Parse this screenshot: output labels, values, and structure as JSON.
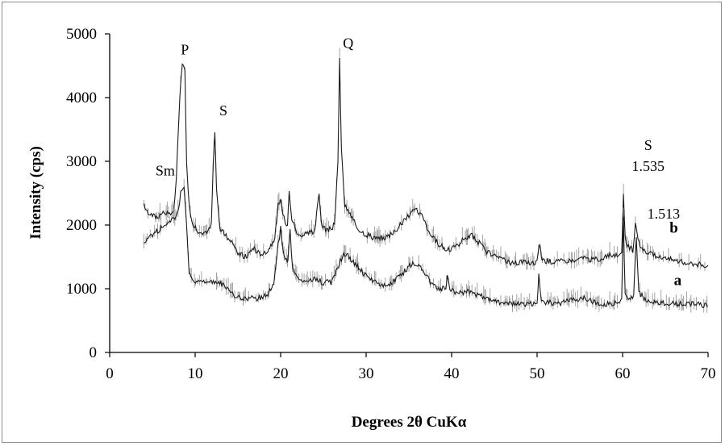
{
  "chart_data": {
    "type": "line",
    "xlabel": "Degrees 2θ CuKα",
    "ylabel": "Intensity (cps)",
    "xlim": [
      0,
      70
    ],
    "ylim": [
      0,
      5000
    ],
    "xticks": [
      "0",
      "10",
      "20",
      "30",
      "40",
      "50",
      "60",
      "70"
    ],
    "yticks": [
      "0",
      "1000",
      "2000",
      "3000",
      "4000",
      "5000"
    ],
    "grid": false,
    "legend": "none",
    "colors": {
      "line": "#1a1a1a",
      "noise": "#9a9a9a",
      "axis": "#000000"
    },
    "series": [
      {
        "name": "b",
        "label_at": [
          65.5,
          1880
        ],
        "points": [
          [
            4.0,
            2300
          ],
          [
            4.5,
            2200
          ],
          [
            5.0,
            2150
          ],
          [
            5.5,
            2120
          ],
          [
            6.0,
            2180
          ],
          [
            6.5,
            2200
          ],
          [
            7.0,
            2150
          ],
          [
            7.5,
            2250
          ],
          [
            7.8,
            2700
          ],
          [
            8.0,
            3400
          ],
          [
            8.3,
            4200
          ],
          [
            8.5,
            4500
          ],
          [
            8.8,
            4400
          ],
          [
            9.0,
            3000
          ],
          [
            9.3,
            2300
          ],
          [
            9.8,
            1980
          ],
          [
            10.5,
            1900
          ],
          [
            11.0,
            1850
          ],
          [
            11.5,
            1880
          ],
          [
            11.9,
            2000
          ],
          [
            12.1,
            2900
          ],
          [
            12.3,
            3500
          ],
          [
            12.5,
            2600
          ],
          [
            12.9,
            1950
          ],
          [
            13.5,
            1850
          ],
          [
            14.5,
            1700
          ],
          [
            15.0,
            1550
          ],
          [
            16.0,
            1500
          ],
          [
            16.8,
            1650
          ],
          [
            17.5,
            1550
          ],
          [
            18.5,
            1600
          ],
          [
            19.3,
            1800
          ],
          [
            19.7,
            2300
          ],
          [
            20.0,
            2400
          ],
          [
            20.4,
            2100
          ],
          [
            20.8,
            2000
          ],
          [
            21.0,
            2550
          ],
          [
            21.3,
            2100
          ],
          [
            22.0,
            1850
          ],
          [
            23.0,
            1850
          ],
          [
            24.0,
            1900
          ],
          [
            24.3,
            2300
          ],
          [
            24.5,
            2500
          ],
          [
            24.8,
            2000
          ],
          [
            25.5,
            1900
          ],
          [
            26.3,
            2000
          ],
          [
            26.7,
            3000
          ],
          [
            26.9,
            4600
          ],
          [
            27.1,
            3200
          ],
          [
            27.5,
            2300
          ],
          [
            28.0,
            2200
          ],
          [
            29.0,
            1950
          ],
          [
            30.0,
            1850
          ],
          [
            31.0,
            1800
          ],
          [
            32.0,
            1800
          ],
          [
            33.0,
            1850
          ],
          [
            34.0,
            2000
          ],
          [
            35.0,
            2150
          ],
          [
            35.8,
            2250
          ],
          [
            36.5,
            2150
          ],
          [
            37.5,
            1850
          ],
          [
            38.5,
            1700
          ],
          [
            39.5,
            1600
          ],
          [
            40.5,
            1650
          ],
          [
            41.5,
            1800
          ],
          [
            42.3,
            1850
          ],
          [
            43.0,
            1750
          ],
          [
            44.0,
            1600
          ],
          [
            45.0,
            1500
          ],
          [
            46.0,
            1450
          ],
          [
            47.0,
            1400
          ],
          [
            48.0,
            1420
          ],
          [
            49.0,
            1400
          ],
          [
            50.0,
            1420
          ],
          [
            50.3,
            1700
          ],
          [
            50.6,
            1450
          ],
          [
            51.5,
            1430
          ],
          [
            52.5,
            1420
          ],
          [
            53.5,
            1450
          ],
          [
            54.5,
            1450
          ],
          [
            55.5,
            1480
          ],
          [
            56.5,
            1450
          ],
          [
            57.5,
            1480
          ],
          [
            58.5,
            1520
          ],
          [
            59.5,
            1550
          ],
          [
            59.9,
            1600
          ],
          [
            60.1,
            2450
          ],
          [
            60.3,
            1800
          ],
          [
            60.7,
            1650
          ],
          [
            61.2,
            1600
          ],
          [
            61.5,
            2000
          ],
          [
            61.8,
            1800
          ],
          [
            62.3,
            1600
          ],
          [
            63.0,
            1550
          ],
          [
            64.0,
            1520
          ],
          [
            65.0,
            1480
          ],
          [
            66.0,
            1450
          ],
          [
            67.0,
            1420
          ],
          [
            68.0,
            1400
          ],
          [
            69.0,
            1380
          ],
          [
            70.0,
            1370
          ]
        ]
      },
      {
        "name": "a",
        "label_at": [
          66.0,
          1060
        ],
        "points": [
          [
            4.0,
            1750
          ],
          [
            4.5,
            1800
          ],
          [
            5.0,
            1850
          ],
          [
            5.5,
            1900
          ],
          [
            6.0,
            1950
          ],
          [
            6.5,
            2000
          ],
          [
            7.0,
            2050
          ],
          [
            7.5,
            2100
          ],
          [
            8.0,
            2200
          ],
          [
            8.3,
            2500
          ],
          [
            8.7,
            2600
          ],
          [
            9.0,
            2000
          ],
          [
            9.3,
            1250
          ],
          [
            9.8,
            1150
          ],
          [
            10.5,
            1100
          ],
          [
            11.5,
            1100
          ],
          [
            12.5,
            1100
          ],
          [
            13.5,
            1050
          ],
          [
            14.0,
            950
          ],
          [
            14.5,
            900
          ],
          [
            15.5,
            850
          ],
          [
            16.5,
            850
          ],
          [
            17.5,
            850
          ],
          [
            18.5,
            900
          ],
          [
            19.2,
            1100
          ],
          [
            19.7,
            1700
          ],
          [
            20.0,
            1950
          ],
          [
            20.4,
            1500
          ],
          [
            20.8,
            1400
          ],
          [
            21.1,
            1900
          ],
          [
            21.4,
            1300
          ],
          [
            22.0,
            1150
          ],
          [
            23.0,
            1100
          ],
          [
            24.0,
            1150
          ],
          [
            25.0,
            1100
          ],
          [
            26.0,
            1100
          ],
          [
            26.5,
            1250
          ],
          [
            27.0,
            1450
          ],
          [
            27.5,
            1550
          ],
          [
            28.0,
            1500
          ],
          [
            29.0,
            1350
          ],
          [
            30.0,
            1200
          ],
          [
            31.0,
            1100
          ],
          [
            32.0,
            1050
          ],
          [
            33.0,
            1100
          ],
          [
            34.0,
            1200
          ],
          [
            35.0,
            1350
          ],
          [
            35.8,
            1400
          ],
          [
            36.5,
            1300
          ],
          [
            37.5,
            1100
          ],
          [
            38.5,
            1000
          ],
          [
            39.3,
            1000
          ],
          [
            39.5,
            1200
          ],
          [
            39.8,
            1000
          ],
          [
            40.5,
            950
          ],
          [
            41.5,
            950
          ],
          [
            42.5,
            950
          ],
          [
            43.0,
            900
          ],
          [
            44.0,
            850
          ],
          [
            45.0,
            800
          ],
          [
            46.0,
            780
          ],
          [
            47.0,
            760
          ],
          [
            48.0,
            760
          ],
          [
            49.0,
            760
          ],
          [
            50.0,
            780
          ],
          [
            50.2,
            1200
          ],
          [
            50.5,
            800
          ],
          [
            51.5,
            780
          ],
          [
            52.5,
            760
          ],
          [
            53.5,
            800
          ],
          [
            54.5,
            820
          ],
          [
            55.5,
            850
          ],
          [
            56.5,
            800
          ],
          [
            57.5,
            760
          ],
          [
            58.5,
            760
          ],
          [
            59.5,
            780
          ],
          [
            59.9,
            850
          ],
          [
            60.1,
            2100
          ],
          [
            60.3,
            900
          ],
          [
            60.8,
            820
          ],
          [
            61.3,
            900
          ],
          [
            61.6,
            1800
          ],
          [
            61.9,
            950
          ],
          [
            62.5,
            850
          ],
          [
            63.5,
            800
          ],
          [
            64.5,
            780
          ],
          [
            65.5,
            760
          ],
          [
            66.5,
            760
          ],
          [
            67.5,
            780
          ],
          [
            68.5,
            770
          ],
          [
            69.5,
            740
          ],
          [
            70.0,
            730
          ]
        ]
      }
    ],
    "annotations": [
      {
        "text": "P",
        "x": 8.8,
        "y": 4680
      },
      {
        "text": "S",
        "x": 13.3,
        "y": 3720
      },
      {
        "text": "Q",
        "x": 27.9,
        "y": 4780
      },
      {
        "text": "Sm",
        "x": 6.5,
        "y": 2780
      },
      {
        "text": "S",
        "x": 63.0,
        "y": 3180
      },
      {
        "text": "1.535",
        "x": 63.0,
        "y": 2850
      },
      {
        "text": "1.513",
        "x": 64.8,
        "y": 2100
      }
    ]
  }
}
